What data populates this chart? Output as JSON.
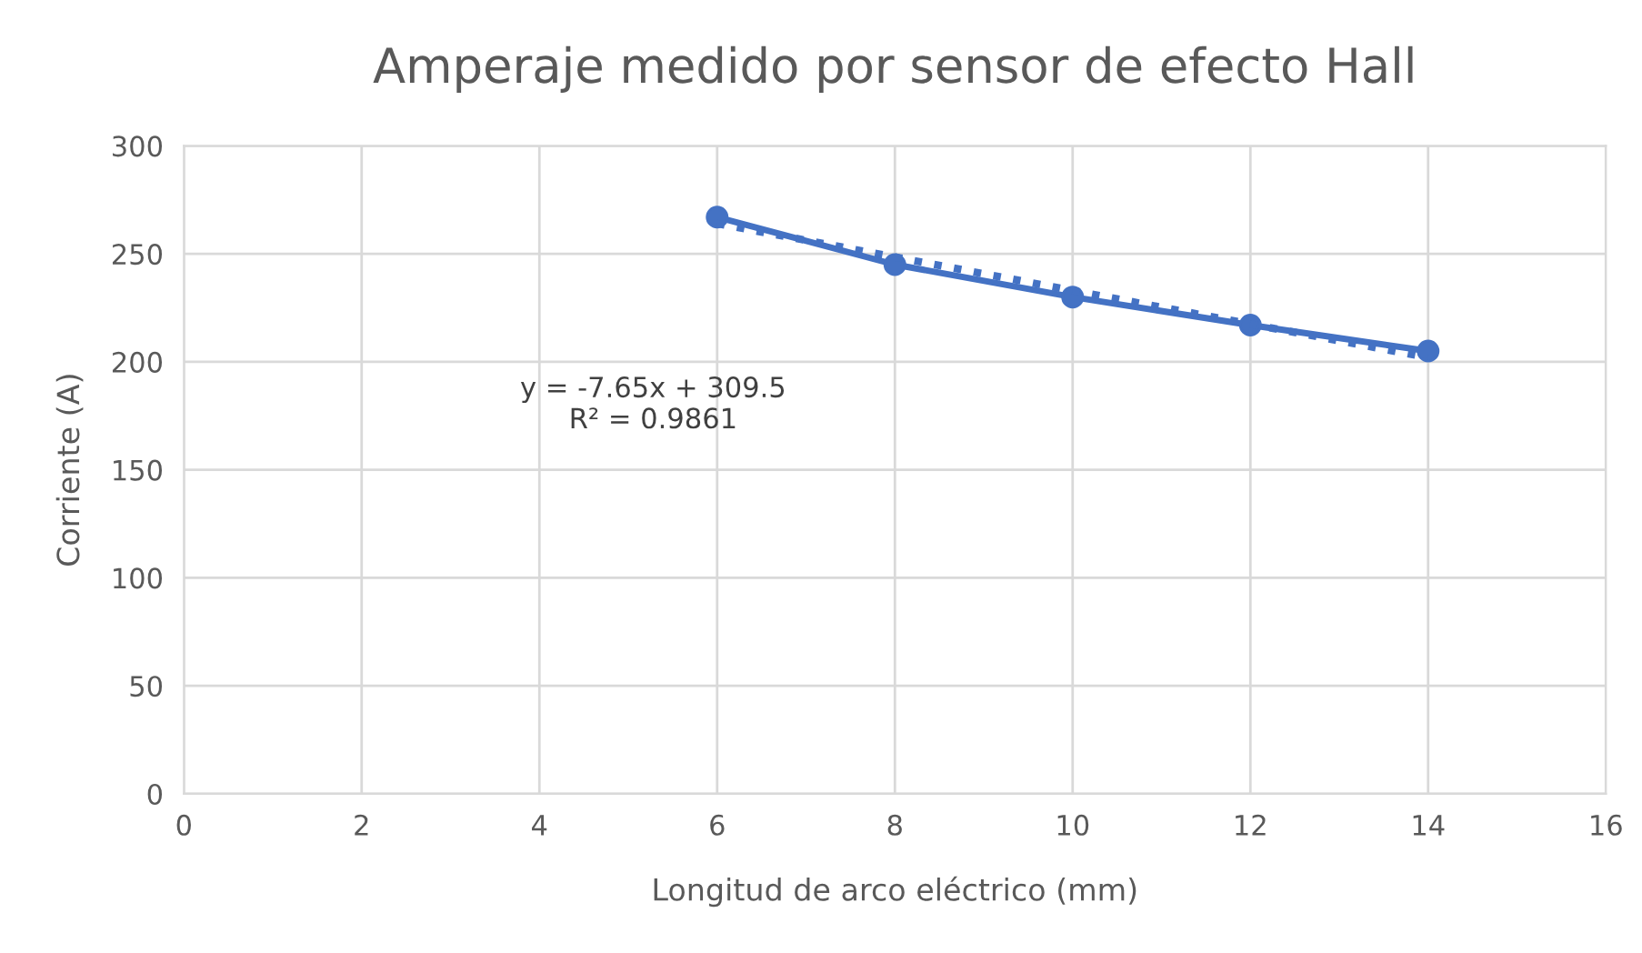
{
  "chart_data": {
    "type": "line",
    "title": "Amperaje medido por sensor de efecto Hall",
    "xlabel": "Longitud de arco eléctrico (mm)",
    "ylabel": "Corriente (A)",
    "x": [
      6,
      8,
      10,
      12,
      14
    ],
    "series": [
      {
        "color": "#4472c4",
        "values": [
          267,
          245,
          230,
          217,
          205
        ],
        "marker": "circle",
        "line_style": "solid"
      },
      {
        "type": "line",
        "color": "#4472c4",
        "x": [
          6,
          14
        ],
        "values": [
          264,
          202
        ],
        "marker": "none",
        "line_style": "dotted"
      }
    ],
    "annotations": [
      "y = -7.65x + 309.5\nR² = 0.9861"
    ],
    "xlim": [
      0,
      16
    ],
    "xticks": [
      0,
      2,
      4,
      6,
      8,
      10,
      12,
      14,
      16
    ],
    "ylim": [
      0,
      300
    ],
    "yticks": [
      0,
      50,
      100,
      150,
      200,
      250,
      300
    ],
    "grid": true,
    "legend": false
  }
}
